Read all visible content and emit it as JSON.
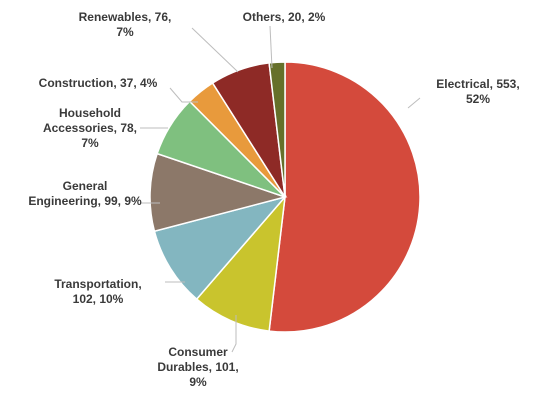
{
  "chart_data": {
    "type": "pie",
    "title": "",
    "legend": "none",
    "slices": [
      {
        "name": "Electrical",
        "value": 553,
        "percent": "52%",
        "color": "#d44a3c",
        "lines": [
          "Electrical, 553,",
          "52%"
        ]
      },
      {
        "name": "Consumer Durables",
        "value": 101,
        "percent": "9%",
        "color": "#c9c42d",
        "lines": [
          "Consumer",
          "Durables, 101,",
          "9%"
        ]
      },
      {
        "name": "Transportation",
        "value": 102,
        "percent": "10%",
        "color": "#83b6c0",
        "lines": [
          "Transportation,",
          "102, 10%"
        ]
      },
      {
        "name": "General Engineering",
        "value": 99,
        "percent": "9%",
        "color": "#8c7869",
        "lines": [
          "General",
          "Engineering, 99, 9%"
        ]
      },
      {
        "name": "Household Accessories",
        "value": 78,
        "percent": "7%",
        "color": "#7fc07f",
        "lines": [
          "Household",
          "Accessories, 78,",
          "7%"
        ]
      },
      {
        "name": "Construction",
        "value": 37,
        "percent": "4%",
        "color": "#e89a3c",
        "lines": [
          "Construction, 37, 4%"
        ]
      },
      {
        "name": "Renewables",
        "value": 76,
        "percent": "7%",
        "color": "#8e2a26",
        "lines": [
          "Renewables, 76,",
          "7%"
        ]
      },
      {
        "name": "Others",
        "value": 20,
        "percent": "2%",
        "color": "#66702a",
        "lines": [
          "Others, 20, 2%"
        ]
      }
    ]
  }
}
